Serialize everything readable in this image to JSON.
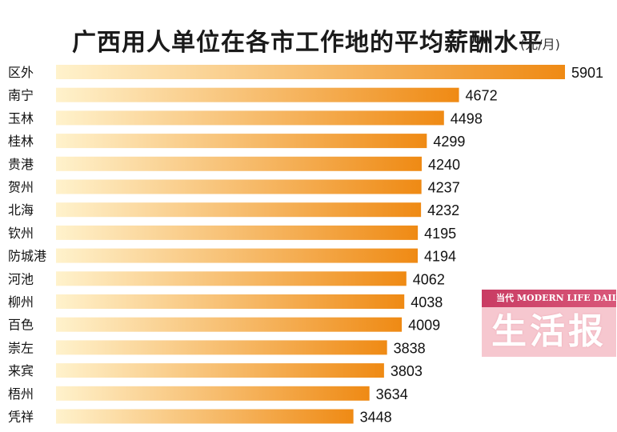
{
  "chart_data": {
    "type": "bar",
    "orientation": "horizontal",
    "title": "广西用人单位在各市工作地的平均薪酬水平",
    "unit": "(元/月)",
    "categories": [
      "区外",
      "南宁",
      "玉林",
      "桂林",
      "贵港",
      "贺州",
      "北海",
      "钦州",
      "防城港",
      "河池",
      "柳州",
      "百色",
      "崇左",
      "来宾",
      "梧州",
      "凭祥"
    ],
    "values": [
      5901,
      4672,
      4498,
      4299,
      4240,
      4237,
      4232,
      4195,
      4194,
      4062,
      4038,
      4009,
      3838,
      3803,
      3634,
      3448
    ],
    "xlim": [
      0,
      5901
    ],
    "grid": false,
    "legend": "none",
    "bar_color_start": "#fff2cc",
    "bar_color_end": "#ef8a14"
  },
  "logo": {
    "top_text": "当代 MODERN LIFE DAILY",
    "brand_text": "生活报"
  }
}
